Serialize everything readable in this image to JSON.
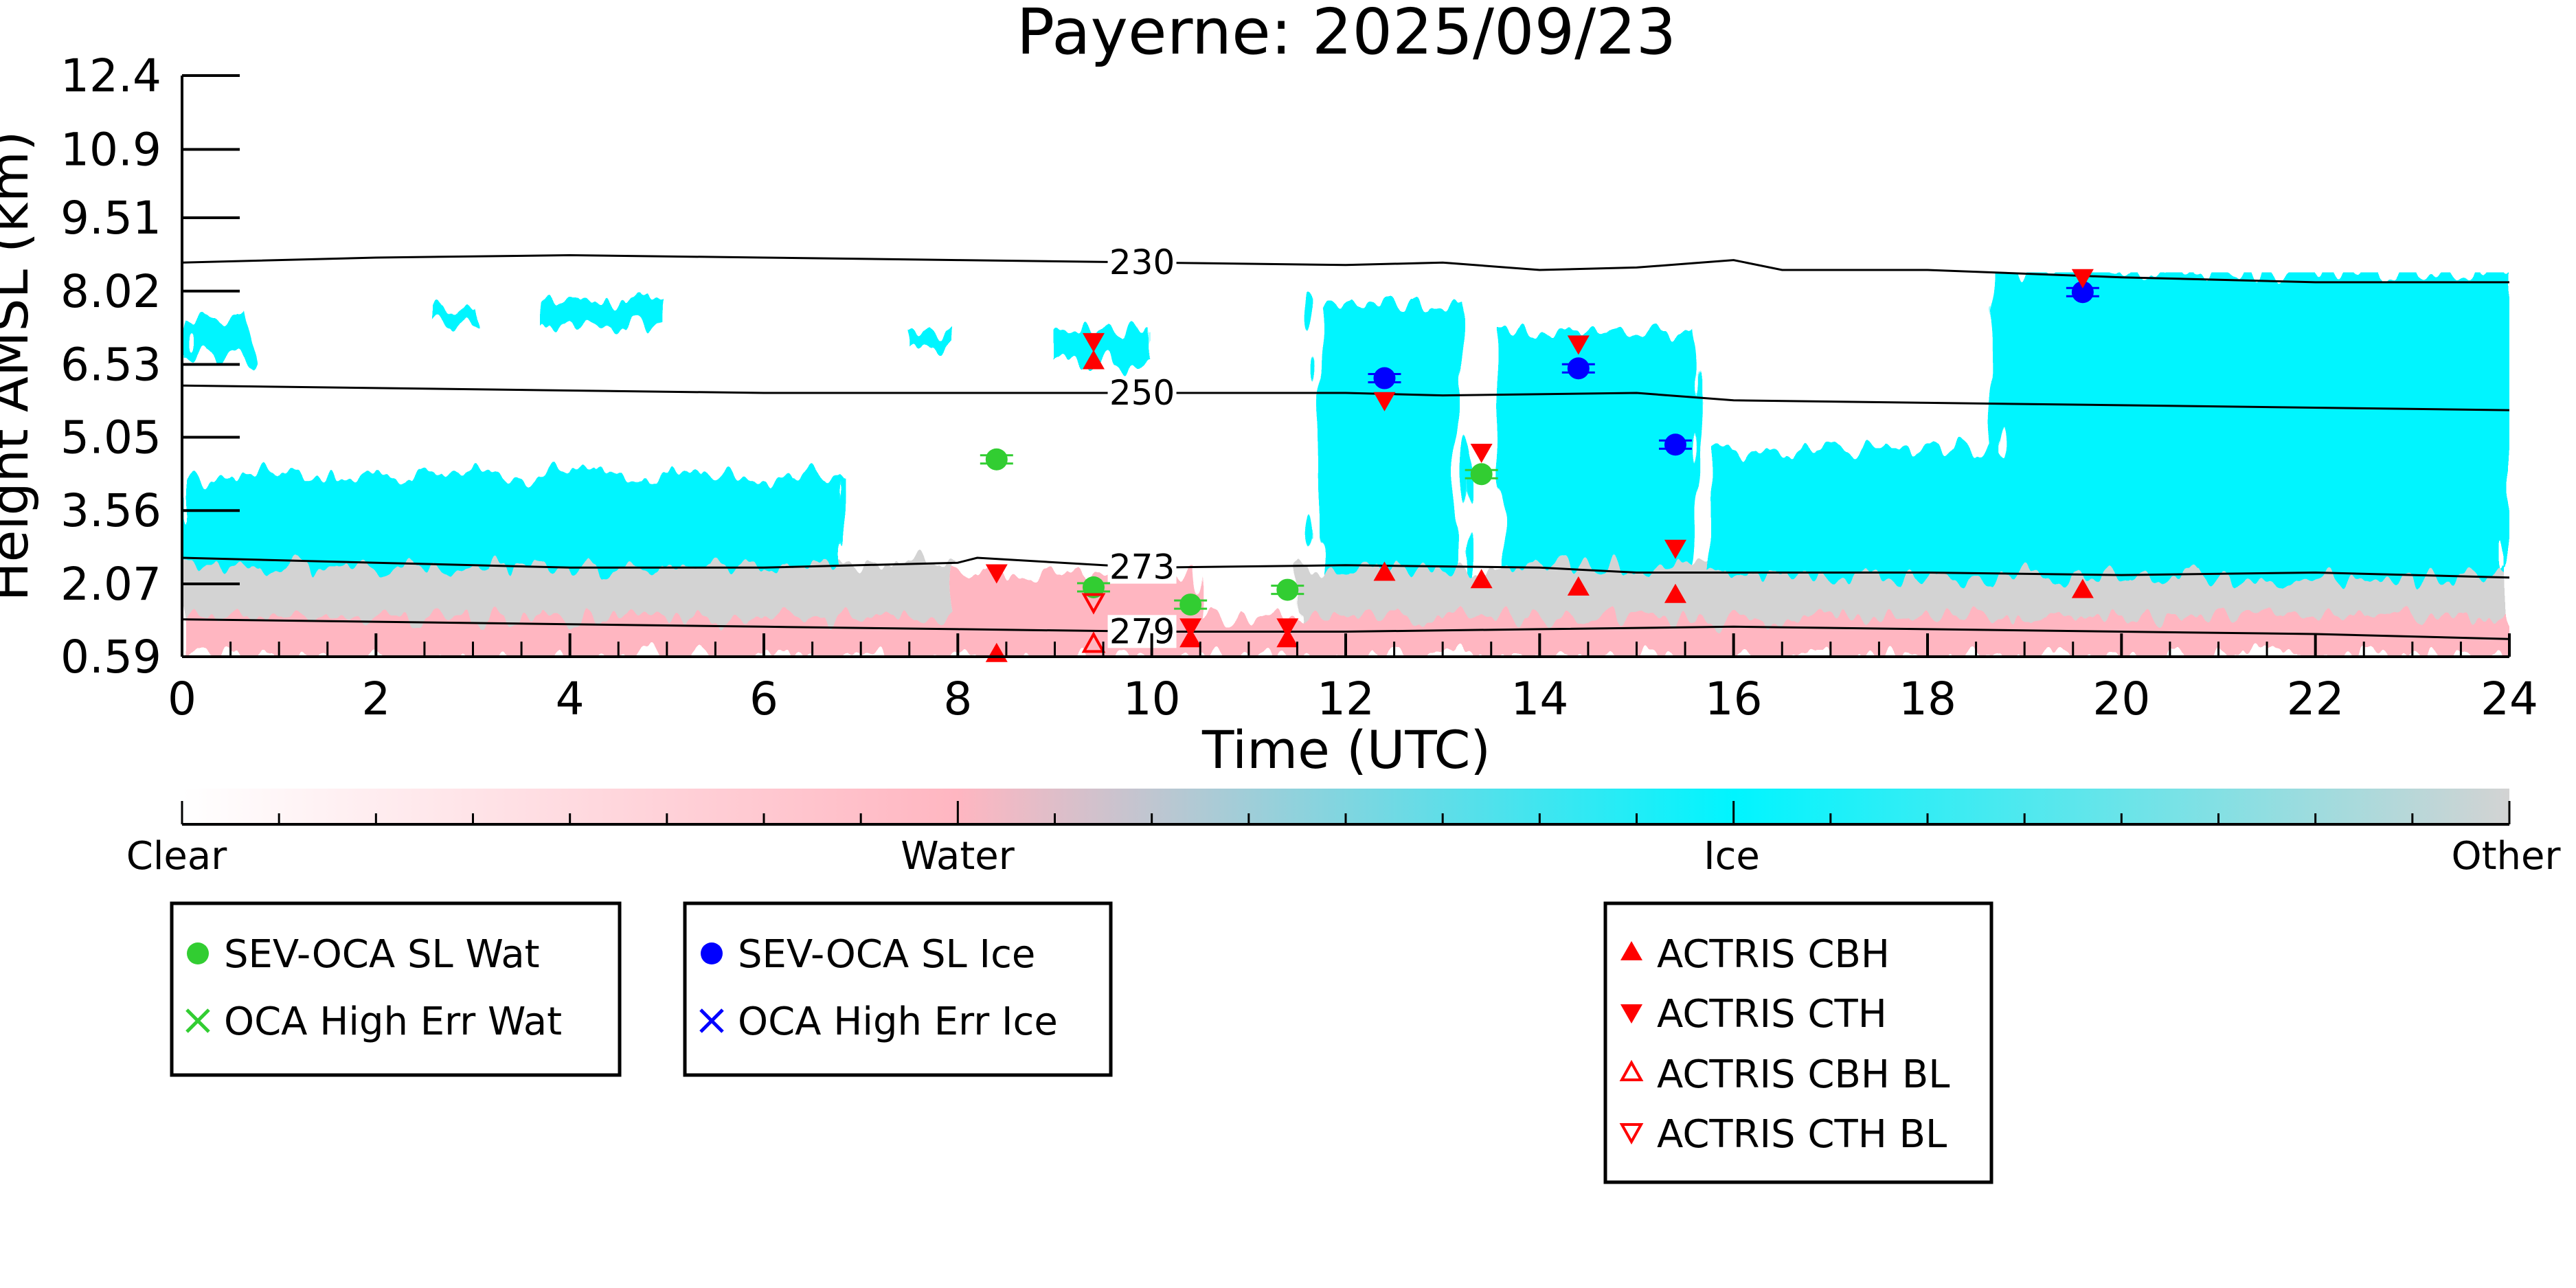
{
  "chart_data": {
    "type": "scatter",
    "title": "Payerne: 2025/09/23",
    "xlabel": "Time (UTC)",
    "ylabel": "Height AMSL (km)",
    "xlim": [
      0,
      24
    ],
    "ylim": [
      0.59,
      12.4
    ],
    "xticks": [
      0,
      2,
      4,
      6,
      8,
      10,
      12,
      14,
      16,
      18,
      20,
      22,
      24
    ],
    "yticks": [
      0.59,
      2.07,
      3.56,
      5.05,
      6.53,
      8.02,
      9.51,
      10.9,
      12.4
    ],
    "ytick_labels": [
      "0.59",
      "2.07",
      "3.56",
      "5.05",
      "6.53",
      "8.02",
      "9.51",
      "10.9",
      "12.4"
    ],
    "colors": {
      "clear": "#ffffff",
      "water": "#ffb6c1",
      "ice": "#00f5ff",
      "other": "#d3d3d3",
      "oca_water": "#32cd32",
      "oca_ice": "#0000ff",
      "actris": "#ff0000"
    },
    "colorbar": {
      "labels": [
        "Clear",
        "Water",
        "Ice",
        "Other"
      ]
    },
    "cloud_field": {
      "ice_regions": [
        {
          "x": [
            0,
            0.7
          ],
          "y": [
            6.7,
            7.5
          ]
        },
        {
          "x": [
            0,
            6.8
          ],
          "y": [
            2.4,
            4.3
          ]
        },
        {
          "x": [
            2.6,
            3.0
          ],
          "y": [
            7.4,
            7.7
          ]
        },
        {
          "x": [
            3.7,
            5.0
          ],
          "y": [
            7.3,
            7.8
          ]
        },
        {
          "x": [
            7.5,
            8.0
          ],
          "y": [
            6.9,
            7.2
          ]
        },
        {
          "x": [
            9.0,
            10.0
          ],
          "y": [
            6.6,
            7.2
          ]
        },
        {
          "x": [
            11.7,
            13.2
          ],
          "y": [
            2.4,
            7.8
          ]
        },
        {
          "x": [
            13.6,
            15.6
          ],
          "y": [
            2.4,
            7.2
          ]
        },
        {
          "x": [
            15.8,
            24.0
          ],
          "y": [
            2.2,
            4.8
          ]
        },
        {
          "x": [
            18.7,
            24.0
          ],
          "y": [
            2.2,
            8.4
          ]
        }
      ],
      "water_regions": [
        {
          "x": [
            0,
            24
          ],
          "y": [
            0.59,
            1.4
          ]
        },
        {
          "x": [
            8.0,
            10.5
          ],
          "y": [
            0.59,
            2.3
          ]
        }
      ],
      "other_regions": [
        {
          "x": [
            0,
            8.0
          ],
          "y": [
            0.9,
            2.5
          ]
        },
        {
          "x": [
            11.5,
            24
          ],
          "y": [
            1.0,
            2.4
          ]
        }
      ]
    },
    "contours": [
      {
        "label": "230",
        "label_x": 9.9,
        "points": [
          [
            0,
            8.6
          ],
          [
            2,
            8.7
          ],
          [
            4,
            8.75
          ],
          [
            6,
            8.7
          ],
          [
            8,
            8.65
          ],
          [
            10,
            8.6
          ],
          [
            12,
            8.55
          ],
          [
            13,
            8.6
          ],
          [
            14,
            8.45
          ],
          [
            15,
            8.5
          ],
          [
            16,
            8.65
          ],
          [
            16.5,
            8.45
          ],
          [
            18,
            8.45
          ],
          [
            20,
            8.3
          ],
          [
            22,
            8.2
          ],
          [
            24,
            8.2
          ]
        ]
      },
      {
        "label": "250",
        "label_x": 9.9,
        "points": [
          [
            0,
            6.1
          ],
          [
            2,
            6.05
          ],
          [
            4,
            6.0
          ],
          [
            6,
            5.95
          ],
          [
            8,
            5.95
          ],
          [
            10,
            5.95
          ],
          [
            12,
            5.95
          ],
          [
            13,
            5.9
          ],
          [
            15,
            5.95
          ],
          [
            16,
            5.8
          ],
          [
            18,
            5.75
          ],
          [
            20,
            5.7
          ],
          [
            22,
            5.65
          ],
          [
            24,
            5.6
          ]
        ]
      },
      {
        "label": "273",
        "label_x": 9.9,
        "points": [
          [
            0,
            2.6
          ],
          [
            2,
            2.5
          ],
          [
            4,
            2.4
          ],
          [
            6,
            2.4
          ],
          [
            8,
            2.5
          ],
          [
            8.2,
            2.6
          ],
          [
            9.5,
            2.45
          ],
          [
            10,
            2.4
          ],
          [
            12,
            2.45
          ],
          [
            14,
            2.4
          ],
          [
            15,
            2.3
          ],
          [
            16,
            2.3
          ],
          [
            18,
            2.3
          ],
          [
            20,
            2.25
          ],
          [
            22,
            2.3
          ],
          [
            24,
            2.2
          ]
        ]
      },
      {
        "label": "279",
        "label_x": 9.9,
        "points": [
          [
            0,
            1.35
          ],
          [
            2,
            1.3
          ],
          [
            4,
            1.25
          ],
          [
            6,
            1.2
          ],
          [
            8,
            1.15
          ],
          [
            10,
            1.1
          ],
          [
            12,
            1.1
          ],
          [
            14,
            1.15
          ],
          [
            16,
            1.2
          ],
          [
            18,
            1.15
          ],
          [
            20,
            1.1
          ],
          [
            22,
            1.05
          ],
          [
            24,
            0.95
          ]
        ]
      }
    ],
    "series": [
      {
        "name": "SEV-OCA SL Wat",
        "marker": "circle",
        "color": "#32cd32",
        "points": [
          [
            8.4,
            4.6
          ],
          [
            9.4,
            2.0
          ],
          [
            10.4,
            1.65
          ],
          [
            11.4,
            1.95
          ],
          [
            13.4,
            4.3
          ]
        ]
      },
      {
        "name": "OCA High Err Wat",
        "marker": "x",
        "color": "#32cd32",
        "points": []
      },
      {
        "name": "SEV-OCA SL Ice",
        "marker": "circle",
        "color": "#0000ff",
        "points": [
          [
            12.4,
            6.25
          ],
          [
            14.4,
            6.45
          ],
          [
            15.4,
            4.9
          ],
          [
            19.6,
            8.0
          ]
        ]
      },
      {
        "name": "OCA High Err Ice",
        "marker": "x",
        "color": "#0000ff",
        "points": []
      },
      {
        "name": "ACTRIS CBH",
        "marker": "triangle-up",
        "color": "#ff0000",
        "points": [
          [
            8.4,
            0.65
          ],
          [
            9.4,
            6.6
          ],
          [
            10.4,
            0.95
          ],
          [
            11.4,
            0.95
          ],
          [
            12.4,
            2.3
          ],
          [
            13.4,
            2.15
          ],
          [
            14.4,
            2.0
          ],
          [
            15.4,
            1.85
          ],
          [
            19.6,
            1.95
          ]
        ]
      },
      {
        "name": "ACTRIS CTH",
        "marker": "triangle-down",
        "color": "#ff0000",
        "points": [
          [
            8.4,
            2.3
          ],
          [
            9.4,
            7.0
          ],
          [
            10.4,
            1.2
          ],
          [
            11.4,
            1.2
          ],
          [
            12.4,
            5.8
          ],
          [
            13.4,
            4.75
          ],
          [
            14.4,
            6.95
          ],
          [
            15.4,
            2.8
          ],
          [
            19.6,
            8.3
          ]
        ]
      },
      {
        "name": "ACTRIS CBH BL",
        "marker": "triangle-up-open",
        "color": "#ff0000",
        "points": [
          [
            9.4,
            0.85
          ]
        ]
      },
      {
        "name": "ACTRIS CTH BL",
        "marker": "triangle-down-open",
        "color": "#ff0000",
        "points": [
          [
            9.4,
            1.7
          ]
        ]
      }
    ],
    "legends": [
      {
        "entries": [
          "SEV-OCA SL Wat",
          "OCA High Err Wat"
        ]
      },
      {
        "entries": [
          "SEV-OCA SL Ice",
          "OCA High Err Ice"
        ]
      },
      {
        "entries": [
          "ACTRIS CBH",
          "ACTRIS CTH",
          "ACTRIS CBH BL",
          "ACTRIS CTH BL"
        ]
      }
    ]
  }
}
